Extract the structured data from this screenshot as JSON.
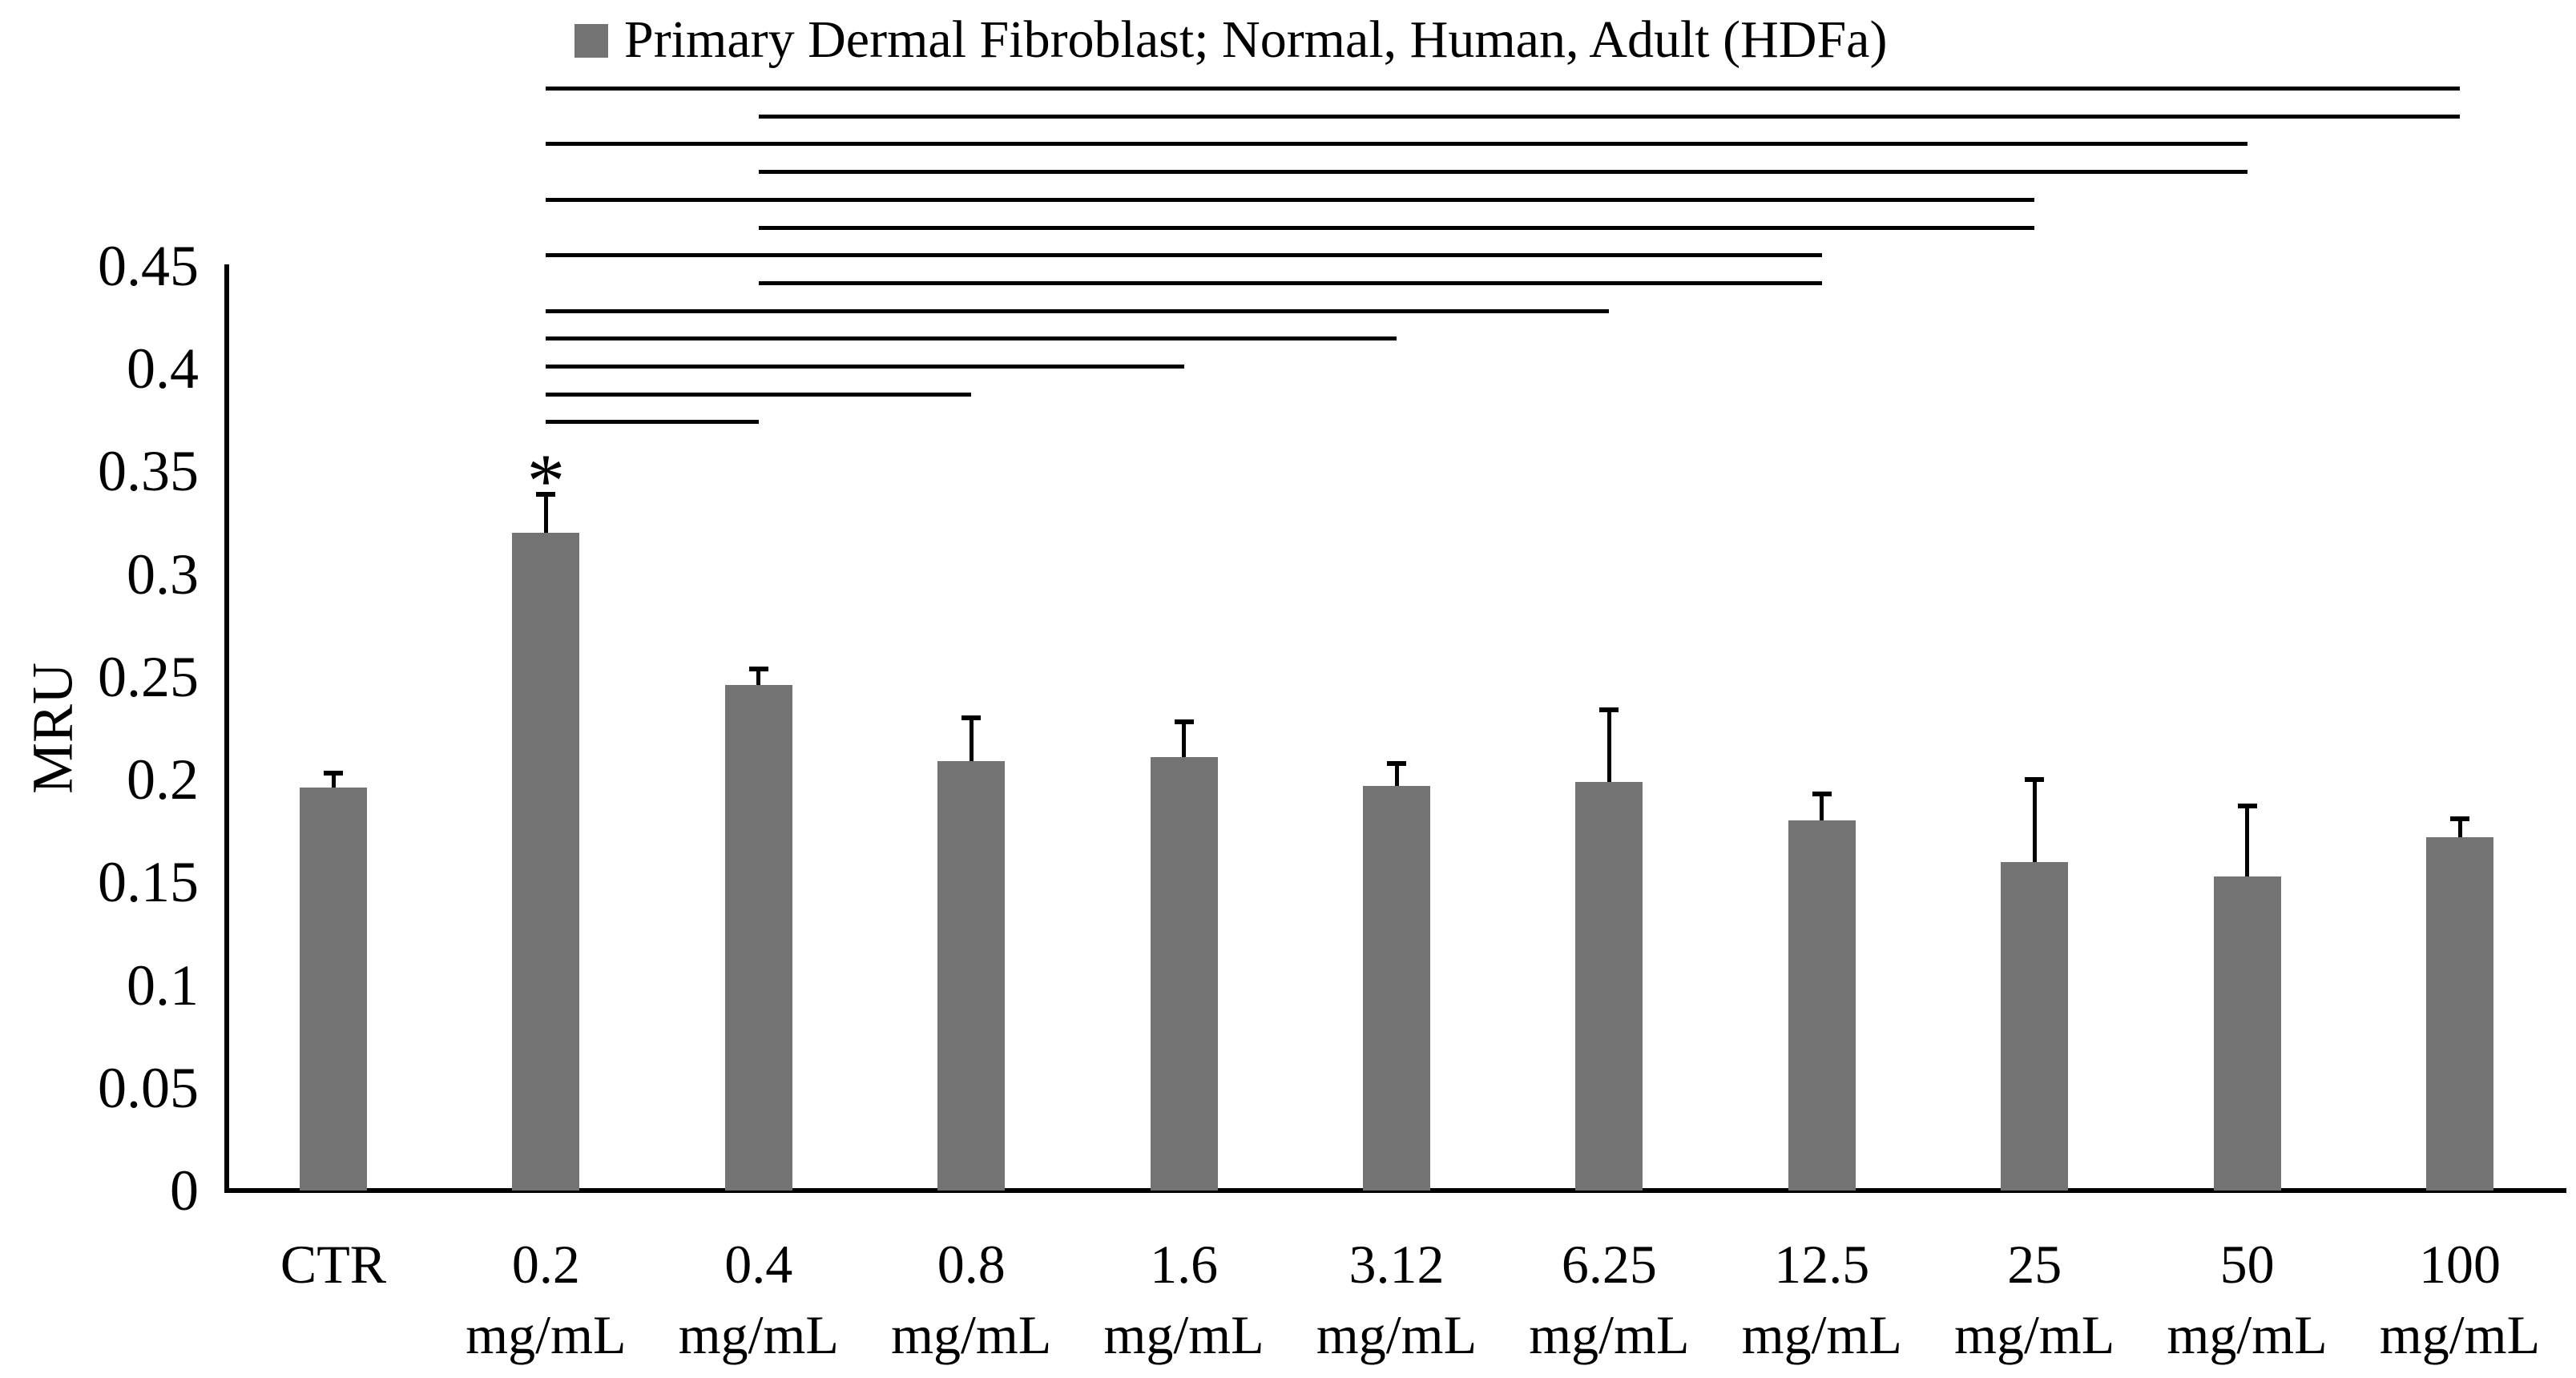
{
  "figure": {
    "background": "#ffffff",
    "text_color": "#000000"
  },
  "chart_data": {
    "type": "bar",
    "title": "",
    "legend": [
      "Primary Dermal Fibroblast; Normal, Human, Adult (HDFa)"
    ],
    "legend_position": "top",
    "legend_marker": "square",
    "bar_color": "#737373",
    "axis_color": "#000000",
    "xlabel": "",
    "ylabel": "MRU",
    "ylim": [
      0,
      0.45
    ],
    "ytick_step": 0.05,
    "yticks": [
      {
        "value": 0,
        "label": "0"
      },
      {
        "value": 0.05,
        "label": "0.05"
      },
      {
        "value": 0.1,
        "label": "0.1"
      },
      {
        "value": 0.15,
        "label": "0.15"
      },
      {
        "value": 0.2,
        "label": "0.2"
      },
      {
        "value": 0.25,
        "label": "0.25"
      },
      {
        "value": 0.3,
        "label": "0.3"
      },
      {
        "value": 0.35,
        "label": "0.35"
      },
      {
        "value": 0.4,
        "label": "0.4"
      },
      {
        "value": 0.45,
        "label": "0.45"
      }
    ],
    "grid": false,
    "categories": [
      "CTR",
      "0.2 mg/mL",
      "0.4 mg/mL",
      "0.8 mg/mL",
      "1.6 mg/mL",
      "3.12 mg/mL",
      "6.25 mg/mL",
      "12.5 mg/mL",
      "25 mg/mL",
      "50 mg/mL",
      "100 mg/mL"
    ],
    "x_tick_lines": [
      [
        "CTR",
        ""
      ],
      [
        "0.2",
        "mg/mL"
      ],
      [
        "0.4",
        "mg/mL"
      ],
      [
        "0.8",
        "mg/mL"
      ],
      [
        "1.6",
        "mg/mL"
      ],
      [
        "3.12",
        "mg/mL"
      ],
      [
        "6.25",
        "mg/mL"
      ],
      [
        "12.5",
        "mg/mL"
      ],
      [
        "25",
        "mg/mL"
      ],
      [
        "50",
        "mg/mL"
      ],
      [
        "100",
        "mg/mL"
      ]
    ],
    "values": [
      0.196,
      0.32,
      0.246,
      0.209,
      0.211,
      0.197,
      0.199,
      0.18,
      0.16,
      0.153,
      0.172
    ],
    "error_plus": [
      0.007,
      0.019,
      0.008,
      0.021,
      0.017,
      0.011,
      0.035,
      0.013,
      0.04,
      0.034,
      0.009
    ],
    "annotations": [
      {
        "category": "0.2 mg/mL",
        "text": "*"
      }
    ],
    "significance_lines": [
      {
        "from": "0.2 mg/mL",
        "to": "100 mg/mL"
      },
      {
        "from": "0.4 mg/mL",
        "to": "100 mg/mL"
      },
      {
        "from": "0.2 mg/mL",
        "to": "50 mg/mL"
      },
      {
        "from": "0.4 mg/mL",
        "to": "50 mg/mL"
      },
      {
        "from": "0.2 mg/mL",
        "to": "25 mg/mL"
      },
      {
        "from": "0.4 mg/mL",
        "to": "25 mg/mL"
      },
      {
        "from": "0.2 mg/mL",
        "to": "12.5 mg/mL"
      },
      {
        "from": "0.4 mg/mL",
        "to": "12.5 mg/mL"
      },
      {
        "from": "0.2 mg/mL",
        "to": "6.25 mg/mL"
      },
      {
        "from": "0.2 mg/mL",
        "to": "3.12 mg/mL"
      },
      {
        "from": "0.2 mg/mL",
        "to": "1.6 mg/mL"
      },
      {
        "from": "0.2 mg/mL",
        "to": "0.8 mg/mL"
      },
      {
        "from": "0.2 mg/mL",
        "to": "0.4 mg/mL"
      }
    ]
  }
}
